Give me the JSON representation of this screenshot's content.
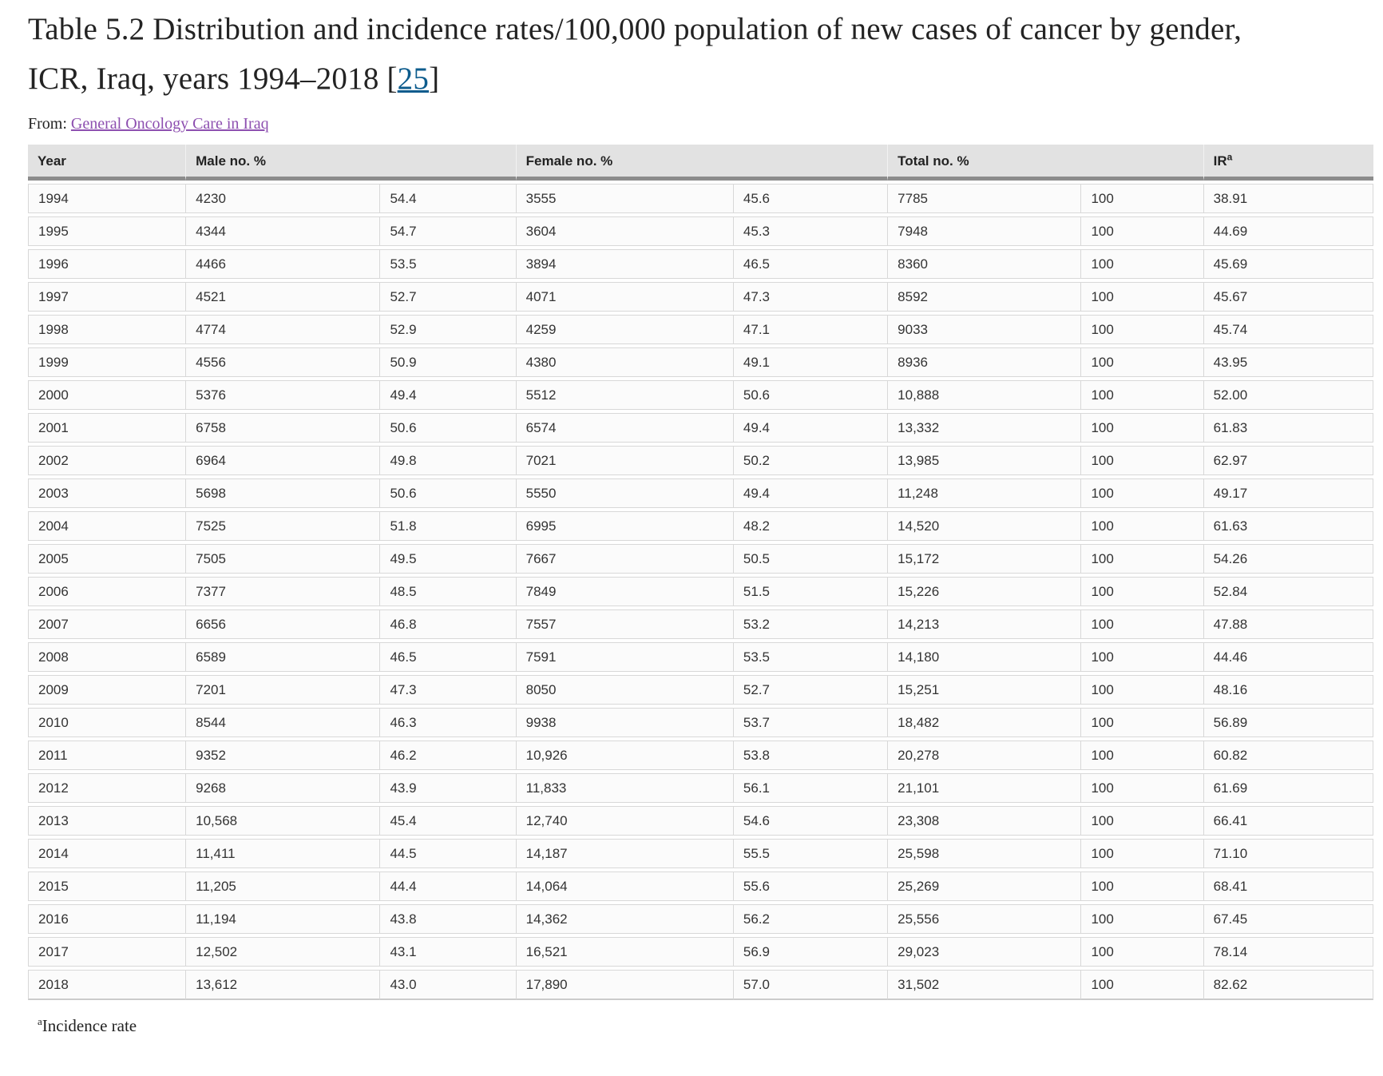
{
  "title": {
    "text": "Table 5.2 Distribution and incidence rates/100,000 population of new cases of cancer by gender, ICR, Iraq, years 1994–2018 ",
    "citation_open": "[",
    "citation": "25",
    "citation_close": "]"
  },
  "from": {
    "label": "From: ",
    "link_text": "General Oncology Care in Iraq"
  },
  "table": {
    "header": [
      {
        "key": "year",
        "label": "Year",
        "colspan": 1
      },
      {
        "key": "male",
        "label": "Male no. %",
        "colspan": 2
      },
      {
        "key": "female",
        "label": "Female no. %",
        "colspan": 2
      },
      {
        "key": "total",
        "label": "Total no. %",
        "colspan": 2
      },
      {
        "key": "ir",
        "label": "IR",
        "colspan": 1,
        "sup": "a"
      }
    ],
    "rows": [
      [
        "1994",
        "4230",
        "54.4",
        "3555",
        "45.6",
        "7785",
        "100",
        "38.91"
      ],
      [
        "1995",
        "4344",
        "54.7",
        "3604",
        "45.3",
        "7948",
        "100",
        "44.69"
      ],
      [
        "1996",
        "4466",
        "53.5",
        "3894",
        "46.5",
        "8360",
        "100",
        "45.69"
      ],
      [
        "1997",
        "4521",
        "52.7",
        "4071",
        "47.3",
        "8592",
        "100",
        "45.67"
      ],
      [
        "1998",
        "4774",
        "52.9",
        "4259",
        "47.1",
        "9033",
        "100",
        "45.74"
      ],
      [
        "1999",
        "4556",
        "50.9",
        "4380",
        "49.1",
        "8936",
        "100",
        "43.95"
      ],
      [
        "2000",
        "5376",
        "49.4",
        "5512",
        "50.6",
        "10,888",
        "100",
        "52.00"
      ],
      [
        "2001",
        "6758",
        "50.6",
        "6574",
        "49.4",
        "13,332",
        "100",
        "61.83"
      ],
      [
        "2002",
        "6964",
        "49.8",
        "7021",
        "50.2",
        "13,985",
        "100",
        "62.97"
      ],
      [
        "2003",
        "5698",
        "50.6",
        "5550",
        "49.4",
        "11,248",
        "100",
        "49.17"
      ],
      [
        "2004",
        "7525",
        "51.8",
        "6995",
        "48.2",
        "14,520",
        "100",
        "61.63"
      ],
      [
        "2005",
        "7505",
        "49.5",
        "7667",
        "50.5",
        "15,172",
        "100",
        "54.26"
      ],
      [
        "2006",
        "7377",
        "48.5",
        "7849",
        "51.5",
        "15,226",
        "100",
        "52.84"
      ],
      [
        "2007",
        "6656",
        "46.8",
        "7557",
        "53.2",
        "14,213",
        "100",
        "47.88"
      ],
      [
        "2008",
        "6589",
        "46.5",
        "7591",
        "53.5",
        "14,180",
        "100",
        "44.46"
      ],
      [
        "2009",
        "7201",
        "47.3",
        "8050",
        "52.7",
        "15,251",
        "100",
        "48.16"
      ],
      [
        "2010",
        "8544",
        "46.3",
        "9938",
        "53.7",
        "18,482",
        "100",
        "56.89"
      ],
      [
        "2011",
        "9352",
        "46.2",
        "10,926",
        "53.8",
        "20,278",
        "100",
        "60.82"
      ],
      [
        "2012",
        "9268",
        "43.9",
        "11,833",
        "56.1",
        "21,101",
        "100",
        "61.69"
      ],
      [
        "2013",
        "10,568",
        "45.4",
        "12,740",
        "54.6",
        "23,308",
        "100",
        "66.41"
      ],
      [
        "2014",
        "11,411",
        "44.5",
        "14,187",
        "55.5",
        "25,598",
        "100",
        "71.10"
      ],
      [
        "2015",
        "11,205",
        "44.4",
        "14,064",
        "55.6",
        "25,269",
        "100",
        "68.41"
      ],
      [
        "2016",
        "11,194",
        "43.8",
        "14,362",
        "56.2",
        "25,556",
        "100",
        "67.45"
      ],
      [
        "2017",
        "12,502",
        "43.1",
        "16,521",
        "56.9",
        "29,023",
        "100",
        "78.14"
      ],
      [
        "2018",
        "13,612",
        "43.0",
        "17,890",
        "57.0",
        "31,502",
        "100",
        "82.62"
      ]
    ]
  },
  "footnote": {
    "sup": "a",
    "text": "Incidence rate"
  },
  "colors": {
    "citation_link": "#0d5c8d",
    "source_link_visited": "#8d4fb0",
    "header_background": "#e2e2e2",
    "header_thick_border": "#8c8c8c",
    "row_background": "#fbfbfb",
    "row_border": "#d8d8d8",
    "body_text": "#333333",
    "title_text": "#232323"
  }
}
